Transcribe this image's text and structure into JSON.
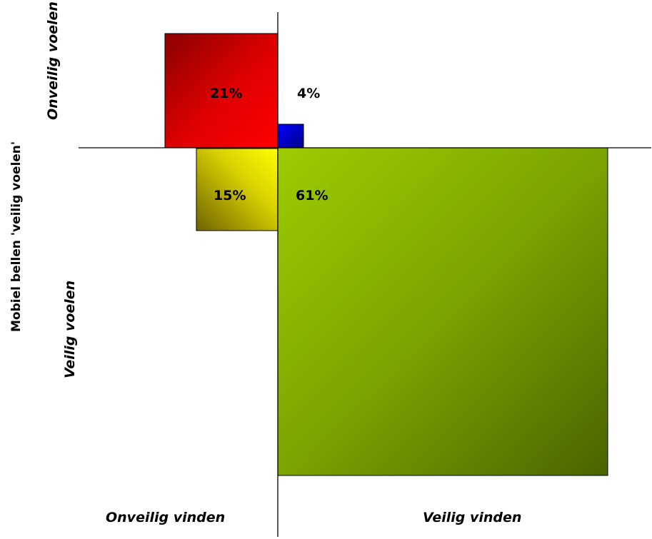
{
  "chart_data": {
    "type": "quadrant-area",
    "title": "",
    "ylabel": "Mobiel bellen 'veilig voelen'",
    "xlabel": "",
    "quadrant_labels": {
      "top": "Onveilig voelen",
      "bottom": "Veilig voelen",
      "left": "Onveilig vinden",
      "right": "Veilig vinden"
    },
    "cells": [
      {
        "key": "onveilig_vinden_onveilig_voelen",
        "label": "21%",
        "value": 21,
        "color": "#ff0000"
      },
      {
        "key": "veilig_vinden_onveilig_voelen",
        "label": "4%",
        "value": 4,
        "color": "#0000cc"
      },
      {
        "key": "onveilig_vinden_veilig_voelen",
        "label": "15%",
        "value": 15,
        "color": "#e8e000"
      },
      {
        "key": "veilig_vinden_veilig_voelen",
        "label": "61%",
        "value": 61,
        "color": "#8cc000"
      }
    ]
  }
}
